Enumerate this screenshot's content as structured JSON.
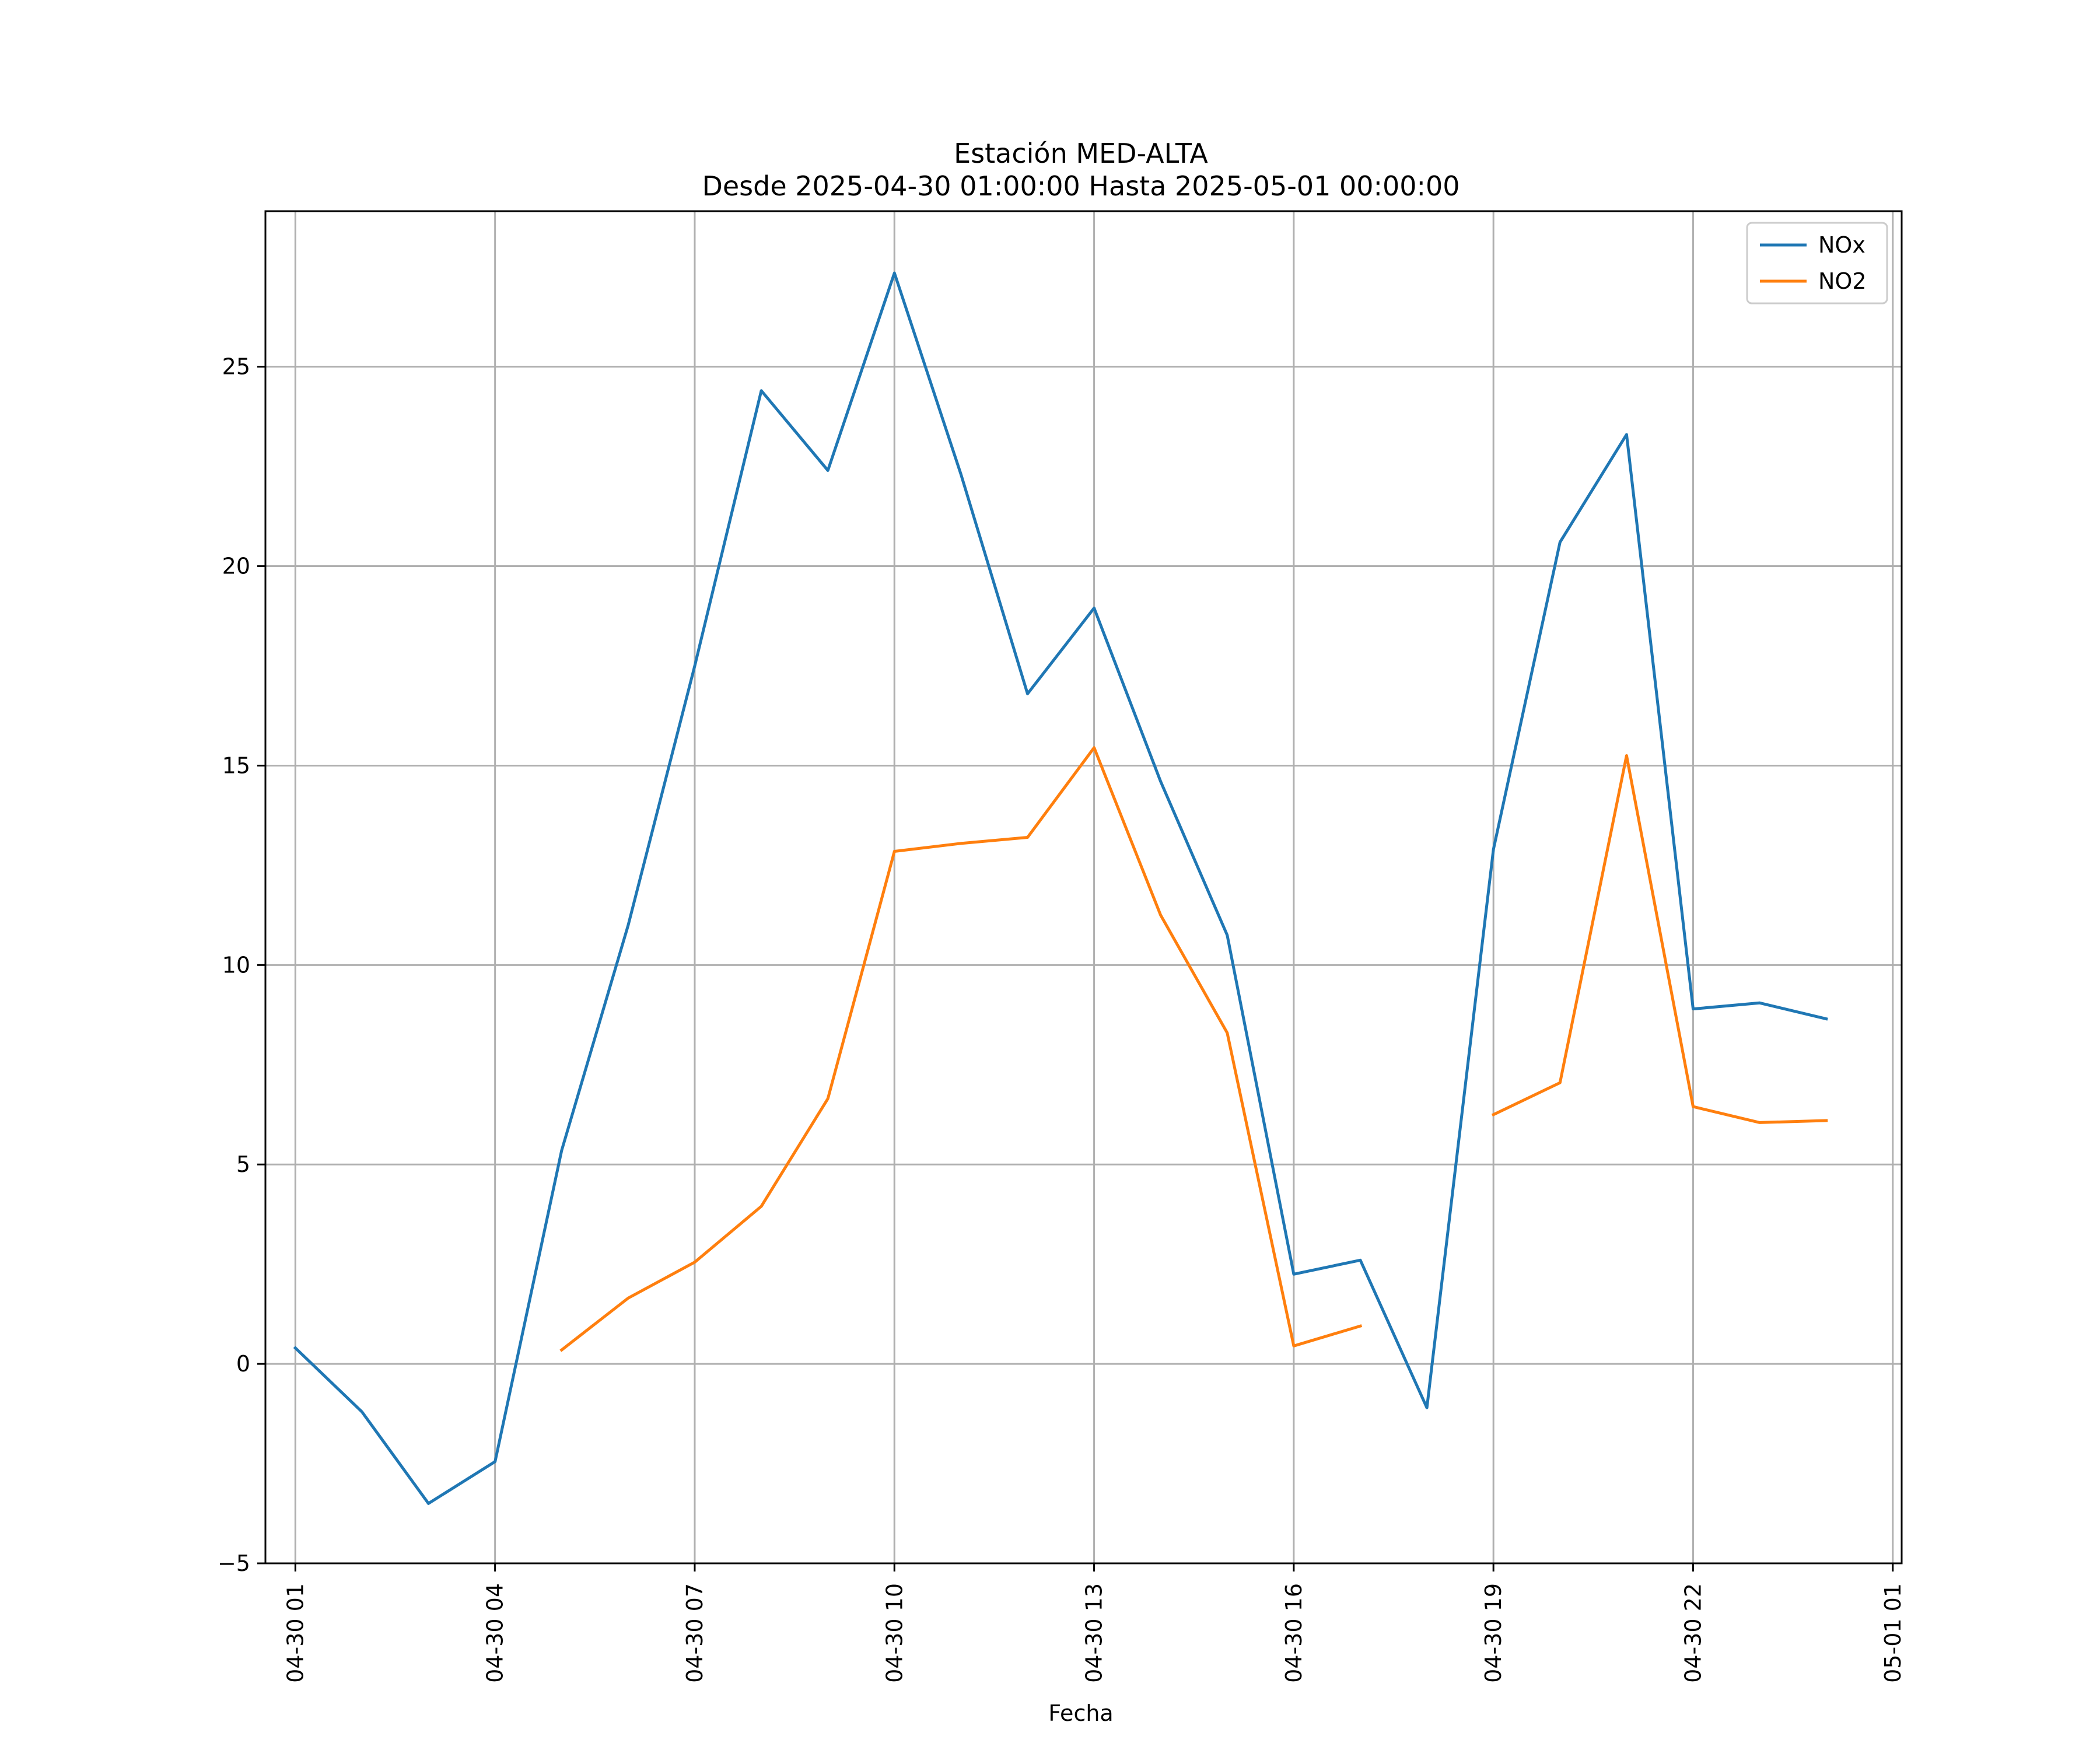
{
  "chart_data": {
    "type": "line",
    "title": "Estación MED-ALTA",
    "subtitle": "Desde 2025-04-30 01:00:00 Hasta 2025-05-01 00:00:00",
    "xlabel": "Fecha",
    "ylabel": "",
    "x": [
      "04-30 01",
      "04-30 02",
      "04-30 03",
      "04-30 04",
      "04-30 05",
      "04-30 06",
      "04-30 07",
      "04-30 08",
      "04-30 09",
      "04-30 10",
      "04-30 11",
      "04-30 12",
      "04-30 13",
      "04-30 14",
      "04-30 15",
      "04-30 16",
      "04-30 17",
      "04-30 18",
      "04-30 19",
      "04-30 20",
      "04-30 21",
      "04-30 22",
      "04-30 23",
      "05-01 00"
    ],
    "x_ticks": [
      "04-30 01",
      "04-30 04",
      "04-30 07",
      "04-30 10",
      "04-30 13",
      "04-30 16",
      "04-30 19",
      "04-30 22",
      "05-01 01"
    ],
    "xlim": [
      "04-30 00:33",
      "05-01 01:08"
    ],
    "y_ticks": [
      -5,
      0,
      5,
      10,
      15,
      20,
      25
    ],
    "ylim": [
      -5,
      28.9
    ],
    "grid": true,
    "legend_position": "top-right",
    "series": [
      {
        "name": "NOx",
        "color": "#1f77b4",
        "values": [
          0.4,
          -1.2,
          -3.5,
          -2.45,
          5.35,
          11.0,
          17.5,
          24.4,
          22.4,
          27.35,
          22.3,
          16.8,
          18.95,
          14.6,
          10.75,
          2.25,
          2.6,
          -1.1,
          12.9,
          20.6,
          23.3,
          8.9,
          9.05,
          8.65
        ]
      },
      {
        "name": "NO2",
        "color": "#ff7f0e",
        "values": [
          null,
          null,
          null,
          null,
          0.35,
          1.65,
          2.55,
          3.95,
          6.65,
          12.85,
          13.05,
          13.2,
          15.45,
          11.25,
          8.3,
          0.45,
          0.95,
          null,
          6.25,
          7.05,
          15.25,
          6.45,
          6.05,
          6.1
        ]
      }
    ]
  }
}
